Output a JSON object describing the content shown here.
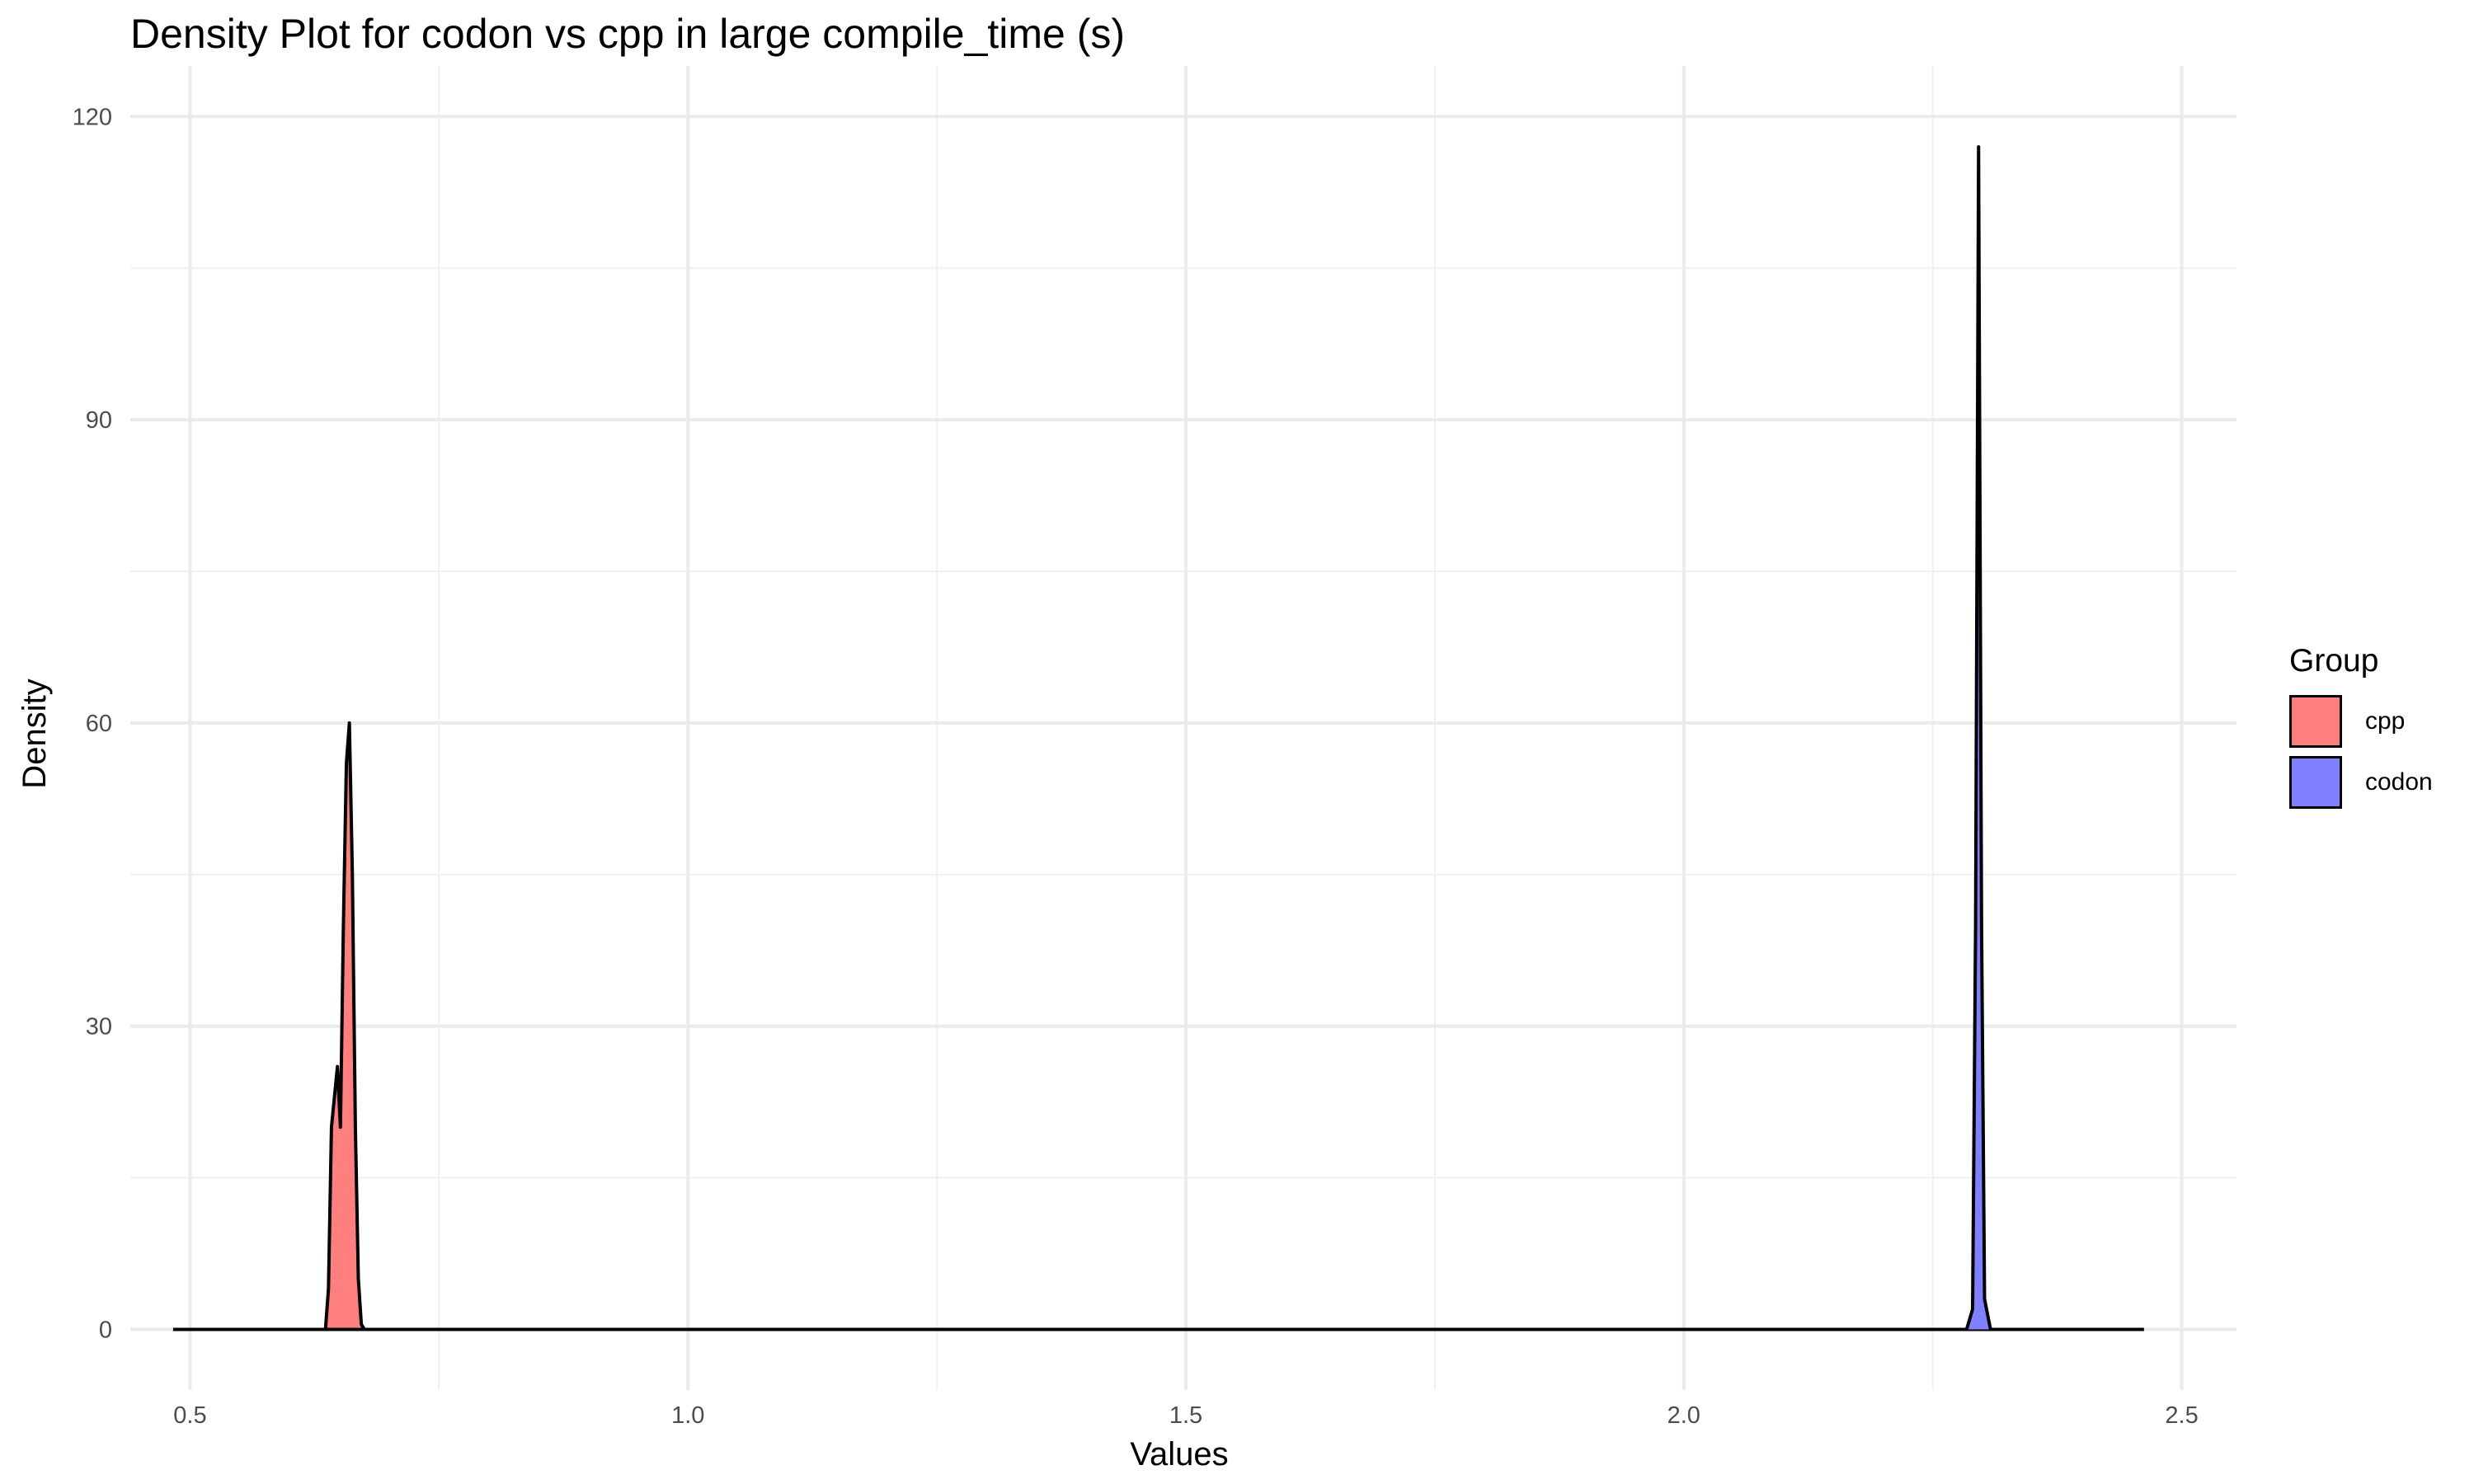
{
  "chart_data": {
    "type": "area",
    "title": "Density Plot for codon vs cpp in large compile_time (s)",
    "xlabel": "Values",
    "ylabel": "Density",
    "xlim": [
      0.44,
      2.555
    ],
    "ylim": [
      -6,
      125
    ],
    "x_ticks": [
      0.5,
      1.0,
      1.5,
      2.0,
      2.5
    ],
    "x_tick_labels": [
      "0.5",
      "1.0",
      "1.5",
      "2.0",
      "2.5"
    ],
    "y_ticks": [
      0,
      30,
      60,
      90,
      120
    ],
    "y_tick_labels": [
      "0",
      "30",
      "60",
      "90",
      "120"
    ],
    "grid": true,
    "legend": {
      "title": "Group",
      "position": "right"
    },
    "series": [
      {
        "name": "cpp",
        "color": "#FF7F7F",
        "points": [
          [
            0.483,
            0
          ],
          [
            0.636,
            0
          ],
          [
            0.639,
            4
          ],
          [
            0.642,
            20
          ],
          [
            0.648,
            26
          ],
          [
            0.651,
            20
          ],
          [
            0.654,
            40
          ],
          [
            0.657,
            56
          ],
          [
            0.66,
            60
          ],
          [
            0.663,
            45
          ],
          [
            0.666,
            20
          ],
          [
            0.669,
            5
          ],
          [
            0.672,
            0.5
          ],
          [
            0.675,
            0
          ],
          [
            2.462,
            0
          ]
        ]
      },
      {
        "name": "codon",
        "color": "#7F7FFF",
        "points": [
          [
            0.483,
            0
          ],
          [
            2.284,
            0
          ],
          [
            2.29,
            2
          ],
          [
            2.293,
            40
          ],
          [
            2.296,
            117
          ],
          [
            2.299,
            40
          ],
          [
            2.302,
            3
          ],
          [
            2.308,
            0
          ],
          [
            2.462,
            0
          ]
        ]
      }
    ]
  }
}
